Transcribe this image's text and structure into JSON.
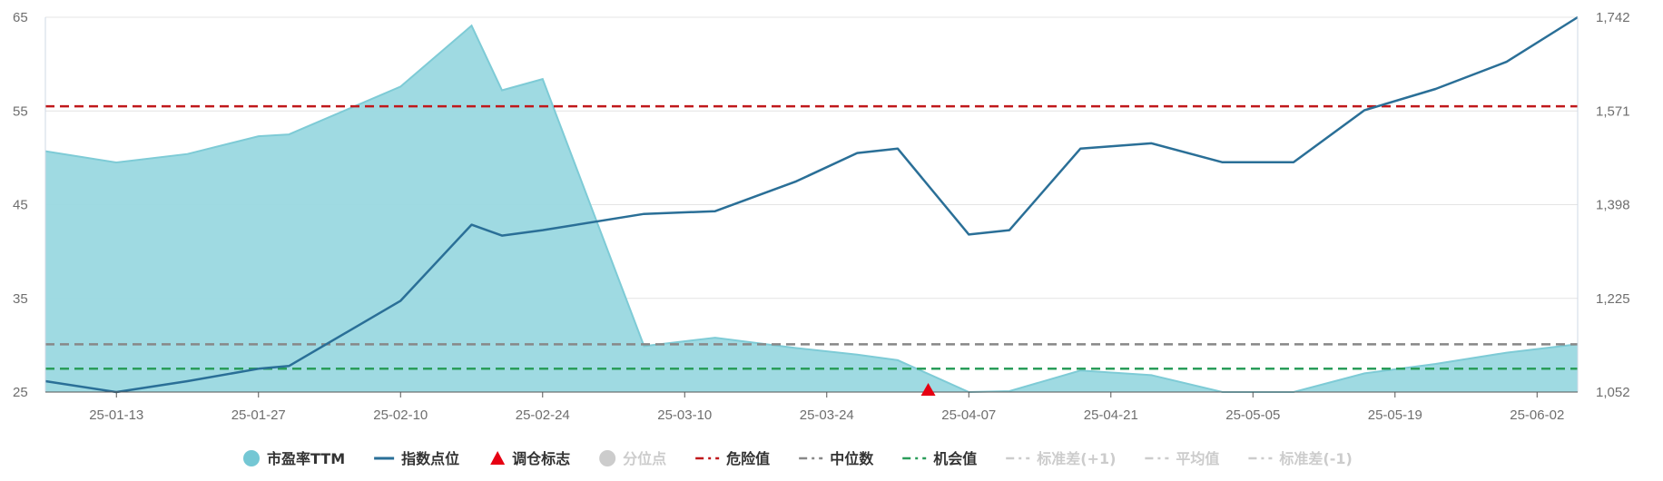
{
  "chart_data": {
    "type": "line",
    "x": [
      "25-01-06",
      "25-01-13",
      "25-01-20",
      "25-01-27",
      "25-01-30",
      "25-02-10",
      "25-02-17",
      "25-02-20",
      "25-02-24",
      "25-03-06",
      "25-03-13",
      "25-03-21",
      "25-03-27",
      "25-03-31",
      "25-04-07",
      "25-04-11",
      "25-04-18",
      "25-04-25",
      "25-05-02",
      "25-05-09",
      "25-05-16",
      "25-05-23",
      "25-05-30",
      "25-06-06"
    ],
    "x_ticks": [
      "25-01-13",
      "25-01-27",
      "25-02-10",
      "25-02-24",
      "25-03-10",
      "25-03-24",
      "25-04-07",
      "25-04-21",
      "25-05-05",
      "25-05-19",
      "25-06-02"
    ],
    "series": [
      {
        "name": "市盈率TTM",
        "axis": "left",
        "kind": "area",
        "color": "#9ad8e0",
        "values": [
          50.7,
          49.5,
          50.4,
          52.3,
          52.5,
          57.6,
          64.1,
          57.2,
          58.4,
          29.9,
          30.8,
          29.7,
          29.0,
          28.4,
          25.0,
          25.1,
          27.3,
          26.8,
          25.0,
          25.0,
          27.0,
          28.0,
          29.2,
          30.1
        ]
      },
      {
        "name": "指数点位",
        "axis": "right",
        "kind": "line",
        "color": "#2a6f97",
        "values": [
          1072,
          1052,
          1072,
          1095,
          1100,
          1220,
          1360,
          1340,
          1350,
          1380,
          1385,
          1440,
          1492,
          1500,
          1342,
          1350,
          1500,
          1510,
          1475,
          1475,
          1571,
          1610,
          1660,
          1742
        ]
      }
    ],
    "markers": [
      {
        "name": "调仓标志",
        "x": "25-04-03",
        "color": "#e60012"
      }
    ],
    "reference_lines": [
      {
        "name": "危险值",
        "value": 55.5,
        "color": "#c0181b"
      },
      {
        "name": "中位数",
        "value": 30.1,
        "color": "#888888"
      },
      {
        "name": "机会值",
        "value": 27.5,
        "color": "#2a9d5a"
      }
    ],
    "y_left": {
      "ticks": [
        "25",
        "35",
        "45",
        "55",
        "65"
      ],
      "lim": [
        25,
        65
      ]
    },
    "y_right": {
      "ticks": [
        "1,052",
        "1,225",
        "1,398",
        "1,571",
        "1,742"
      ],
      "lim": [
        1052,
        1742
      ]
    },
    "grid": true,
    "legend_position": "bottom",
    "legend": [
      {
        "label": "市盈率TTM",
        "kind": "circle",
        "color": "#74c7d4",
        "active": true,
        "icon": "circle-icon"
      },
      {
        "label": "指数点位",
        "kind": "line",
        "color": "#2a6f97",
        "active": true,
        "icon": "line-icon"
      },
      {
        "label": "调仓标志",
        "kind": "triangle",
        "color": "#e60012",
        "active": true,
        "icon": "triangle-icon"
      },
      {
        "label": "分位点",
        "kind": "circle",
        "color": "#cccccc",
        "active": false,
        "icon": "circle-icon"
      },
      {
        "label": "危险值",
        "kind": "dash",
        "color": "#c0181b",
        "active": true,
        "icon": "dashed-line-icon"
      },
      {
        "label": "中位数",
        "kind": "dash",
        "color": "#888888",
        "active": true,
        "icon": "dashed-line-icon"
      },
      {
        "label": "机会值",
        "kind": "dash",
        "color": "#2a9d5a",
        "active": true,
        "icon": "dashed-line-icon"
      },
      {
        "label": "标准差(+1)",
        "kind": "dash",
        "color": "#cccccc",
        "active": false,
        "icon": "dashed-line-icon"
      },
      {
        "label": "平均值",
        "kind": "dash",
        "color": "#cccccc",
        "active": false,
        "icon": "dashed-line-icon"
      },
      {
        "label": "标准差(-1)",
        "kind": "dash",
        "color": "#cccccc",
        "active": false,
        "icon": "dashed-line-icon"
      }
    ]
  }
}
